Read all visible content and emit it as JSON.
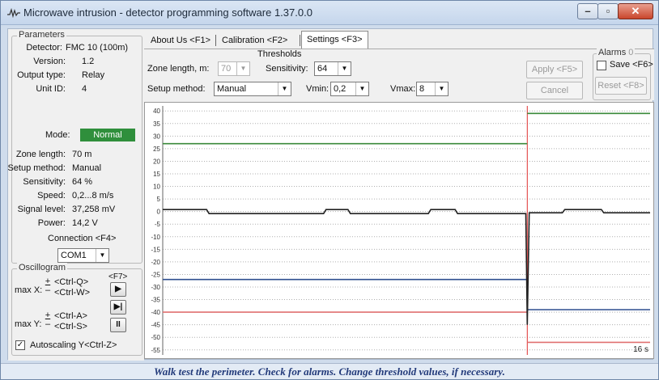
{
  "window": {
    "title": "Microwave intrusion - detector programming software 1.37.0.0"
  },
  "parameters": {
    "legend": "Parameters",
    "rows": [
      {
        "label": "Detector:",
        "value": "FMC 10 (100m)"
      },
      {
        "label": "Version:",
        "value": "1.2"
      },
      {
        "label": "Output type:",
        "value": "Relay"
      },
      {
        "label": "Unit ID:",
        "value": "4"
      }
    ],
    "mode_label": "Mode:",
    "mode_value": "Normal",
    "mode_color": "#2f8f3c",
    "stats": [
      {
        "label": "Zone length:",
        "value": "70  m"
      },
      {
        "label": "Setup method:",
        "value": "Manual"
      },
      {
        "label": "Sensitivity:",
        "value": "64  %"
      },
      {
        "label": "Speed:",
        "value": "0,2...8 m/s"
      },
      {
        "label": "Signal level:",
        "value": "37,258 mV"
      },
      {
        "label": "Power:",
        "value": "14,2  V"
      }
    ],
    "connection_label": "Connection <F4>",
    "com_port": "COM1"
  },
  "oscillogram": {
    "legend": "Oscillogram",
    "max_x_label": "max X:",
    "max_x_plus_key": "<Ctrl-Q>",
    "max_x_minus_key": "<Ctrl-W>",
    "max_y_label": "max Y:",
    "max_y_plus_key": "<Ctrl-A>",
    "max_y_minus_key": "<Ctrl-S>",
    "play_key": "<F7>",
    "autoscaling_label": "Autoscaling Y<Ctrl-Z>",
    "autoscaling_checked": true
  },
  "tabs": [
    {
      "label": "About Us <F1>"
    },
    {
      "label": "Calibration <F2>"
    },
    {
      "label": "Settings <F3>",
      "active": true
    }
  ],
  "settings": {
    "thresholds_label": "Thresholds",
    "zone_length_label": "Zone length, m:",
    "zone_length_value": "70",
    "sensitivity_label": "Sensitivity:",
    "sensitivity_value": "64",
    "setup_method_label": "Setup method:",
    "setup_method_value": "Manual",
    "vmin_label": "Vmin:",
    "vmin_value": "0,2",
    "vmax_label": "Vmax:",
    "vmax_value": "8",
    "apply_label": "Apply <F5>",
    "cancel_label": "Cancel <Esc>",
    "alarms_label": "Alarms",
    "alarms_count": "0",
    "save_label": "Save <F6>",
    "reset_label": "Reset <F8>"
  },
  "chart_data": {
    "type": "line",
    "ylim": [
      -57,
      42
    ],
    "y_ticks": [
      40,
      35,
      30,
      25,
      20,
      15,
      10,
      5,
      0,
      -5,
      -10,
      -15,
      -20,
      -25,
      -30,
      -35,
      -40,
      -45,
      -50,
      -55
    ],
    "x_label_right": "16 s",
    "cursor_x_fraction": 0.748,
    "series": [
      {
        "color": "#3a8a3a",
        "segments": [
          {
            "x": [
              0,
              0.748
            ],
            "y": [
              27,
              27
            ]
          },
          {
            "x": [
              0.748,
              1
            ],
            "y": [
              39,
              39
            ]
          }
        ]
      },
      {
        "color": "#2f4f8f",
        "segments": [
          {
            "x": [
              0,
              0.748
            ],
            "y": [
              -27,
              -27
            ]
          },
          {
            "x": [
              0.748,
              1
            ],
            "y": [
              -39,
              -39
            ]
          }
        ]
      },
      {
        "color": "#e07070",
        "segments": [
          {
            "x": [
              0,
              0.748
            ],
            "y": [
              -40,
              -40
            ]
          },
          {
            "x": [
              0.748,
              1
            ],
            "y": [
              -52,
              -52
            ]
          }
        ]
      },
      {
        "color": "#222222",
        "signal": [
          [
            0.0,
            0.8
          ],
          [
            0.09,
            0.8
          ],
          [
            0.095,
            -0.8
          ],
          [
            0.33,
            -0.8
          ],
          [
            0.335,
            0.8
          ],
          [
            0.38,
            0.8
          ],
          [
            0.385,
            -0.8
          ],
          [
            0.545,
            -0.8
          ],
          [
            0.55,
            0.8
          ],
          [
            0.6,
            0.8
          ],
          [
            0.605,
            -0.8
          ],
          [
            0.745,
            -0.8
          ],
          [
            0.748,
            -45
          ],
          [
            0.752,
            -0.5
          ],
          [
            0.82,
            -0.5
          ],
          [
            0.825,
            0.8
          ],
          [
            0.9,
            0.8
          ],
          [
            0.905,
            -0.5
          ],
          [
            1.0,
            -0.5
          ]
        ]
      }
    ]
  },
  "status_bar": {
    "text": "Walk test the perimeter. Check for alarms. Change threshold values, if necessary."
  }
}
